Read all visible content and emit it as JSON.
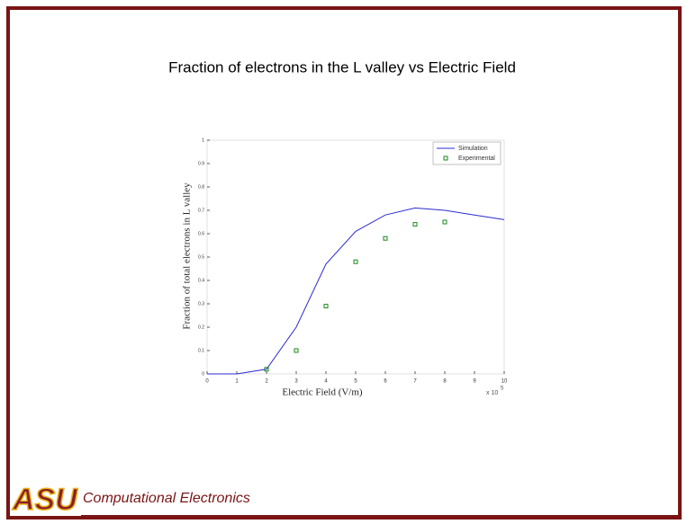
{
  "chart_data": {
    "type": "line",
    "title": "Fraction of electrons in the L valley vs Electric Field",
    "x_label": "Electric Field (V/m)",
    "y_label": "Fraction of total electrons in L valley",
    "x_scale_base": "x 10",
    "x_scale_exponent": "5",
    "xlim": [
      0,
      10
    ],
    "xticks": [
      0,
      1,
      2,
      3,
      4,
      5,
      6,
      7,
      8,
      9,
      10
    ],
    "ylim": [
      0,
      1
    ],
    "yticks": [
      0,
      0.1,
      0.2,
      0.3,
      0.4,
      0.5,
      0.6,
      0.7,
      0.8,
      0.9,
      1
    ],
    "grid": false,
    "legend": "upper right",
    "series": [
      {
        "name": "Simulation",
        "color": "#2b2bd0",
        "mode": "line",
        "x": [
          0,
          1,
          2,
          3,
          4,
          5,
          6,
          7,
          8,
          9,
          10
        ],
        "values": [
          0,
          0,
          0.02,
          0.2,
          0.47,
          0.61,
          0.68,
          0.71,
          0.7,
          0.68,
          0.66
        ]
      },
      {
        "name": "Experimental",
        "color": "#1a8a1a",
        "mode": "marker",
        "x": [
          2,
          3,
          4,
          5,
          6,
          7,
          8
        ],
        "values": [
          0.02,
          0.1,
          0.29,
          0.48,
          0.58,
          0.64,
          0.65
        ]
      }
    ]
  },
  "footer": {
    "logo": "ASU",
    "title": "Computational Electronics"
  }
}
